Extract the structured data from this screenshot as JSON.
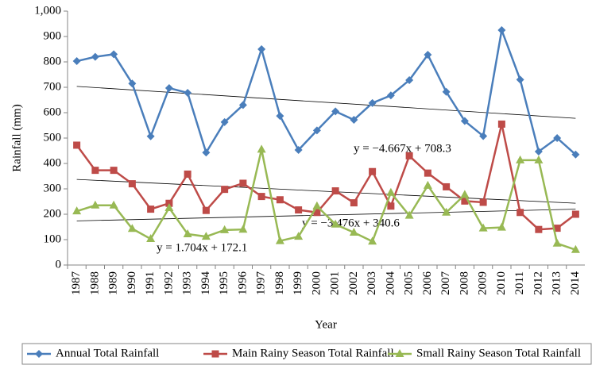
{
  "chart_data": {
    "type": "line",
    "y_label": "Rainfall (mm)",
    "x_label": "Year",
    "categories": [
      "1987",
      "1988",
      "1989",
      "1990",
      "1991",
      "1992",
      "1993",
      "1994",
      "1995",
      "1996",
      "1997",
      "1998",
      "1999",
      "2000",
      "2001",
      "2002",
      "2003",
      "2004",
      "2005",
      "2006",
      "2007",
      "2008",
      "2009",
      "2010",
      "2011",
      "2012",
      "2013",
      "2014"
    ],
    "series": [
      {
        "name": "Annual Total Rainfall",
        "color": "#4a7ebb",
        "marker": "diamond",
        "values": [
          803,
          820,
          830,
          715,
          507,
          697,
          678,
          443,
          563,
          630,
          850,
          587,
          453,
          530,
          605,
          572,
          638,
          668,
          728,
          828,
          682,
          567,
          508,
          925,
          730,
          447,
          500,
          435
        ]
      },
      {
        "name": "Main Rainy Season Total Rainfall",
        "color": "#be4b48",
        "marker": "square",
        "values": [
          472,
          373,
          373,
          320,
          220,
          243,
          358,
          215,
          298,
          322,
          270,
          257,
          217,
          207,
          292,
          245,
          368,
          232,
          430,
          362,
          308,
          252,
          247,
          555,
          207,
          140,
          145,
          200
        ]
      },
      {
        "name": "Small Rainy Season Total Rainfall",
        "color": "#98b954",
        "marker": "triangle",
        "values": [
          212,
          235,
          235,
          143,
          103,
          225,
          122,
          112,
          138,
          140,
          455,
          95,
          112,
          232,
          160,
          128,
          93,
          285,
          195,
          313,
          207,
          277,
          145,
          148,
          413,
          413,
          85,
          60
        ]
      }
    ],
    "trendlines": [
      {
        "label": "y = −4.667x + 708.3",
        "slope": -4.667,
        "intercept": 708.3
      },
      {
        "label": "y = −3.476x + 340.6",
        "slope": -3.476,
        "intercept": 340.6
      },
      {
        "label": "y = 1.704x + 172.1",
        "slope": 1.704,
        "intercept": 172.1
      }
    ],
    "ylim": [
      0,
      1000
    ],
    "yticks": [
      0,
      100,
      200,
      300,
      400,
      500,
      600,
      700,
      800,
      900,
      {
        "value": 1000,
        "label": "1,000"
      }
    ],
    "grid": false,
    "legend": "bottom"
  }
}
